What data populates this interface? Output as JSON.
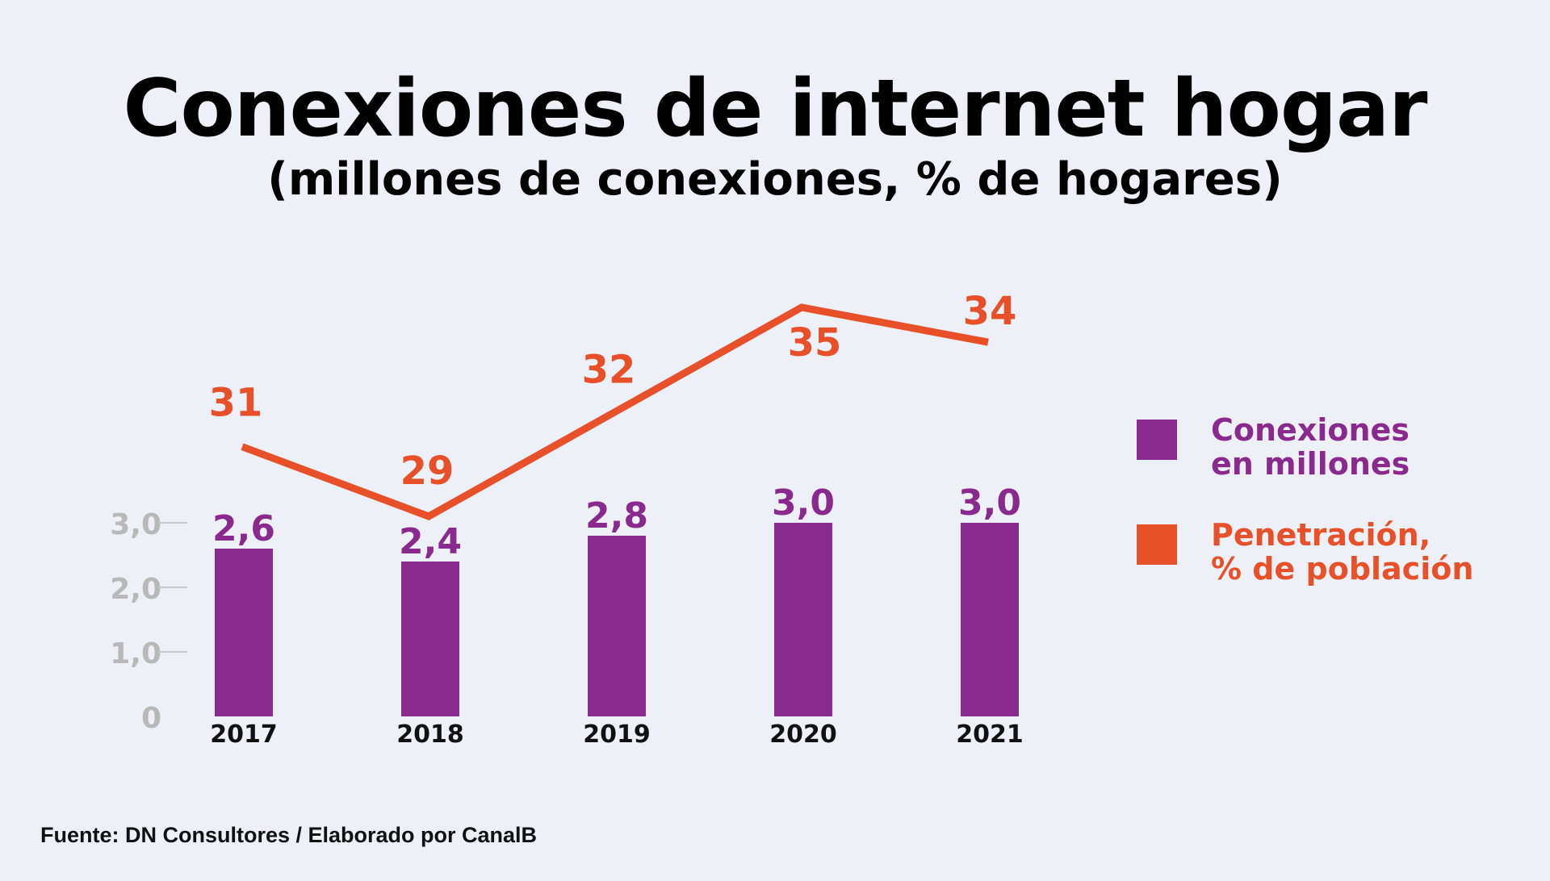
{
  "title": "Conexiones de internet hogar",
  "subtitle": "(millones de conexiones, % de hogares)",
  "source": "Fuente: DN Consultores / Elaborado por CanalB",
  "colors": {
    "background": "#edf1f7",
    "bars": "#8a2a8f",
    "line": "#e8502a",
    "axis_text": "#b8b8b8",
    "gridline": "#c9c9c9"
  },
  "legend": [
    {
      "label_line1": "Conexiones",
      "label_line2": "en millones",
      "color": "#8a2a8f"
    },
    {
      "label_line1": "Penetración,",
      "label_line2": "% de población",
      "color": "#e8502a"
    }
  ],
  "chart_data": {
    "type": "bar+line",
    "categories": [
      "2017",
      "2018",
      "2019",
      "2020",
      "2021"
    ],
    "series": [
      {
        "name": "Conexiones en millones",
        "type": "bar",
        "values": [
          2.6,
          2.4,
          2.8,
          3.0,
          3.0
        ],
        "labels": [
          "2,6",
          "2,4",
          "2,8",
          "3,0",
          "3,0"
        ]
      },
      {
        "name": "Penetración, % de población",
        "type": "line",
        "values": [
          31,
          29,
          32,
          35,
          34
        ],
        "labels": [
          "31",
          "29",
          "32",
          "35",
          "34"
        ]
      }
    ],
    "y_axis": {
      "ticks": [
        0,
        1,
        2,
        3
      ],
      "tick_labels": [
        "0",
        "1,0",
        "2,0",
        "3,0"
      ],
      "ylim": [
        0,
        3
      ]
    },
    "legend_position": "right"
  }
}
